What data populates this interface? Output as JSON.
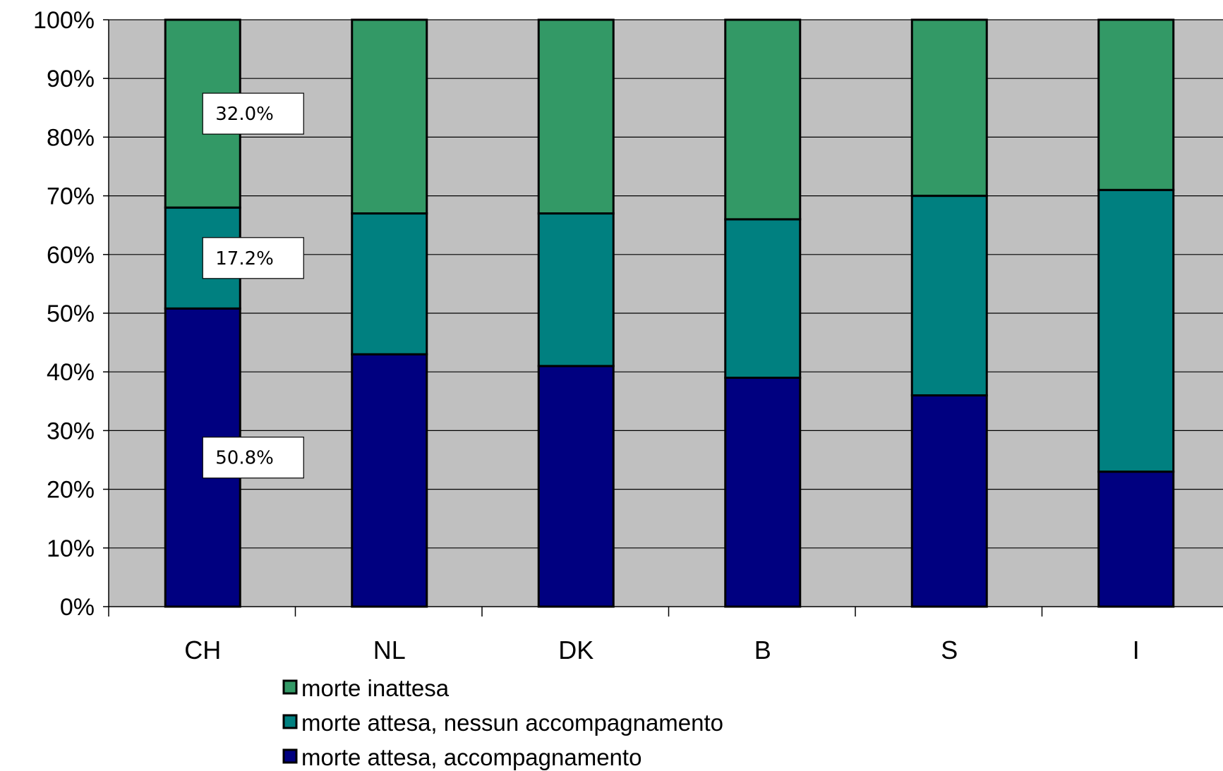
{
  "chart_data": {
    "type": "bar",
    "stacked": true,
    "percent_stacked": true,
    "categories": [
      "CH",
      "NL",
      "DK",
      "B",
      "S",
      "I"
    ],
    "series": [
      {
        "name": "morte attesa, accompagnamento",
        "color": "#000080",
        "values": [
          50.8,
          43,
          41,
          39,
          36,
          23
        ]
      },
      {
        "name": "morte attesa, nessun accompagnamento",
        "color": "#008080",
        "values": [
          17.2,
          24,
          26,
          27,
          34,
          48
        ]
      },
      {
        "name": "morte inattesa",
        "color": "#339966",
        "values": [
          32.0,
          33,
          33,
          34,
          30,
          29
        ]
      }
    ],
    "y_tick_labels": [
      "0%",
      "10%",
      "20%",
      "30%",
      "40%",
      "50%",
      "60%",
      "70%",
      "80%",
      "90%",
      "100%"
    ],
    "ylim": [
      0,
      100
    ],
    "grid": true,
    "plot_background": "#C0C0C0",
    "data_labels": [
      {
        "category": "CH",
        "series": "morte inattesa",
        "text": "32.0%"
      },
      {
        "category": "CH",
        "series": "morte attesa, nessun accompagnamento",
        "text": "17.2%"
      },
      {
        "category": "CH",
        "series": "morte attesa, accompagnamento",
        "text": "50.8%"
      }
    ],
    "legend": {
      "position": "bottom",
      "order": [
        "morte inattesa",
        "morte attesa, nessun accompagnamento",
        "morte attesa, accompagnamento"
      ]
    }
  }
}
